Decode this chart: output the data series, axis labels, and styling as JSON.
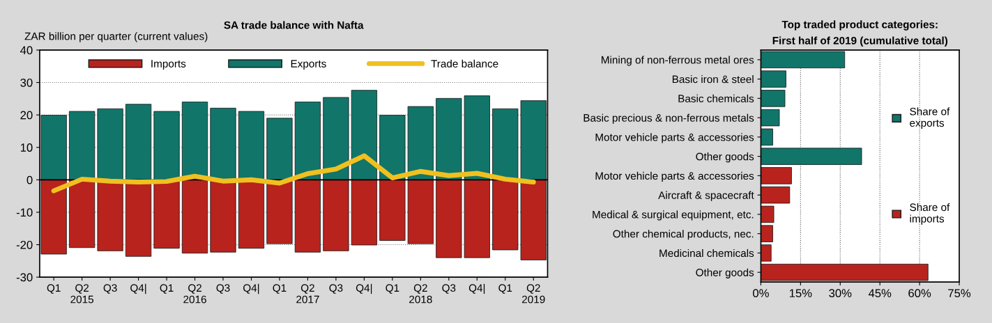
{
  "chart_data": [
    {
      "type": "bar",
      "title": "SA trade balance with Nafta",
      "ylabel": "ZAR billion per quarter (current values)",
      "categories": [
        "Q1",
        "Q2\n2015",
        "Q3",
        "Q4|",
        "Q1",
        "Q2\n2016",
        "Q3",
        "Q4|",
        "Q1",
        "Q2\n2017",
        "Q3",
        "Q4|",
        "Q1",
        "Q2\n2018",
        "Q3",
        "Q4|",
        "Q1",
        "Q2\n2019"
      ],
      "series": [
        {
          "name": "Imports",
          "type": "bar",
          "color": "#b8231d",
          "values": [
            -22.9,
            -20.9,
            -21.9,
            -23.6,
            -21.1,
            -22.6,
            -22.3,
            -21.1,
            -19.7,
            -22.3,
            -21.9,
            -20.1,
            -18.7,
            -19.7,
            -24.0,
            -24.0,
            -21.6,
            -24.7
          ]
        },
        {
          "name": "Exports",
          "type": "bar",
          "color": "#11756a",
          "values": [
            19.9,
            21.1,
            21.9,
            23.3,
            21.1,
            24.0,
            22.1,
            21.1,
            19.0,
            24.0,
            25.4,
            27.6,
            19.9,
            22.6,
            25.1,
            25.9,
            21.9,
            24.4
          ]
        },
        {
          "name": "Trade balance",
          "type": "line",
          "color": "#f0c020",
          "values": [
            -3.4,
            0.2,
            -0.4,
            -0.7,
            -0.5,
            1.1,
            -0.4,
            0.0,
            -1.0,
            1.9,
            3.3,
            7.4,
            0.6,
            2.6,
            1.3,
            2.0,
            0.2,
            -0.7
          ]
        }
      ],
      "stacked": true,
      "ylim": [
        -30,
        40
      ],
      "yticks": [
        -30,
        -20,
        -10,
        0,
        10,
        20,
        30,
        40
      ],
      "grid": "y",
      "legend": "top",
      "marker": "none"
    },
    {
      "type": "bar",
      "orientation": "horizontal",
      "title": "Top traded product categories:\nFirst half of 2019 (cumulative total)",
      "categories": [
        "Mining of non-ferrous metal ores",
        "Basic iron & steel",
        "Basic chemicals",
        "Basic precious & non-ferrous metals",
        "Motor vehicle parts & accessories",
        "Other goods",
        "Motor vehicle parts & accessories",
        "Aircraft & spacecraft",
        "Medical & surgical equipment, etc.",
        "Other chemical products, nec.",
        "Medicinal chemicals",
        "Other goods"
      ],
      "series": [
        {
          "name": "Share of\nexports",
          "color": "#11756a",
          "values": [
            31.7,
            9.5,
            9.1,
            7.0,
            4.5,
            38.1,
            null,
            null,
            null,
            null,
            null,
            null
          ]
        },
        {
          "name": "Share of\nimports",
          "color": "#b8231d",
          "values": [
            null,
            null,
            null,
            null,
            null,
            null,
            11.6,
            10.9,
            4.9,
            4.5,
            3.9,
            63.2
          ]
        }
      ],
      "xlim": [
        0,
        75
      ],
      "xticks": [
        {
          "value": 0,
          "label": "0%"
        },
        {
          "value": 15,
          "label": "15%"
        },
        {
          "value": 30,
          "label": "30%"
        },
        {
          "value": 45,
          "label": "45%"
        },
        {
          "value": 60,
          "label": "60%"
        },
        {
          "value": 75,
          "label": "75%"
        }
      ],
      "grid": "x",
      "legend": "right"
    }
  ]
}
